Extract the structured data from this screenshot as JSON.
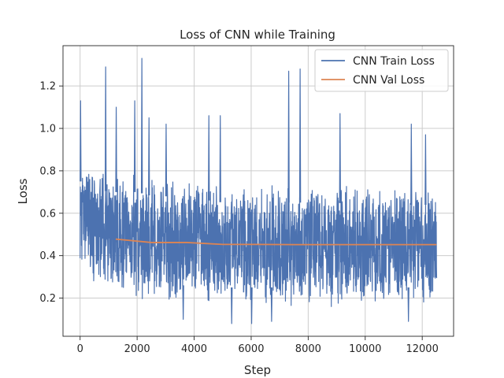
{
  "chart_data": {
    "type": "line",
    "title": "Loss of CNN while Training",
    "xlabel": "Step",
    "ylabel": "Loss",
    "xlim": [
      -600,
      13100
    ],
    "ylim": [
      0.02,
      1.39
    ],
    "x_ticks": [
      0,
      2000,
      4000,
      6000,
      8000,
      10000,
      12000
    ],
    "y_ticks": [
      0.2,
      0.4,
      0.6,
      0.8,
      1.0,
      1.2
    ],
    "x_tick_labels": [
      "0",
      "2000",
      "4000",
      "6000",
      "8000",
      "10000",
      "12000"
    ],
    "y_tick_labels": [
      "0.2",
      "0.4",
      "0.6",
      "0.8",
      "1.0",
      "1.2"
    ],
    "grid": true,
    "legend_position": "top-right",
    "series": [
      {
        "name": "CNN Train Loss",
        "color": "#4c72b0",
        "style": "noisy-band",
        "x": [
          0,
          500,
          1000,
          1500,
          2000,
          2500,
          3000,
          3500,
          4000,
          4500,
          5000,
          5500,
          6000,
          6500,
          7000,
          7500,
          8000,
          8500,
          9000,
          9500,
          10000,
          10500,
          11000,
          11500,
          12000,
          12500
        ],
        "typical_low": [
          0.3,
          0.25,
          0.22,
          0.2,
          0.18,
          0.17,
          0.17,
          0.16,
          0.16,
          0.16,
          0.15,
          0.15,
          0.15,
          0.15,
          0.15,
          0.15,
          0.15,
          0.15,
          0.15,
          0.15,
          0.15,
          0.15,
          0.15,
          0.15,
          0.15,
          0.15
        ],
        "typical_high": [
          0.85,
          0.82,
          0.8,
          0.8,
          0.8,
          0.78,
          0.78,
          0.77,
          0.76,
          0.76,
          0.75,
          0.75,
          0.75,
          0.75,
          0.75,
          0.75,
          0.75,
          0.75,
          0.75,
          0.74,
          0.74,
          0.74,
          0.74,
          0.74,
          0.74,
          0.74
        ],
        "peaks": [
          {
            "x": 0,
            "y": 1.13
          },
          {
            "x": 880,
            "y": 1.29
          },
          {
            "x": 1250,
            "y": 1.1
          },
          {
            "x": 1900,
            "y": 1.13
          },
          {
            "x": 2150,
            "y": 1.33
          },
          {
            "x": 2400,
            "y": 1.05
          },
          {
            "x": 3000,
            "y": 1.02
          },
          {
            "x": 4500,
            "y": 1.06
          },
          {
            "x": 4900,
            "y": 1.06
          },
          {
            "x": 7300,
            "y": 1.27
          },
          {
            "x": 7700,
            "y": 1.28
          },
          {
            "x": 9100,
            "y": 1.07
          },
          {
            "x": 11600,
            "y": 1.02
          },
          {
            "x": 12100,
            "y": 0.97
          }
        ],
        "troughs": [
          {
            "x": 3600,
            "y": 0.1
          },
          {
            "x": 5300,
            "y": 0.08
          },
          {
            "x": 6000,
            "y": 0.08
          },
          {
            "x": 6700,
            "y": 0.09
          },
          {
            "x": 11500,
            "y": 0.09
          }
        ]
      },
      {
        "name": "CNN Val Loss",
        "color": "#dd8452",
        "x": [
          1250,
          2500,
          3750,
          5000,
          6250,
          7500,
          8750,
          10000,
          11250,
          12500
        ],
        "values": [
          0.478,
          0.462,
          0.462,
          0.453,
          0.453,
          0.452,
          0.452,
          0.452,
          0.452,
          0.452
        ]
      }
    ]
  }
}
